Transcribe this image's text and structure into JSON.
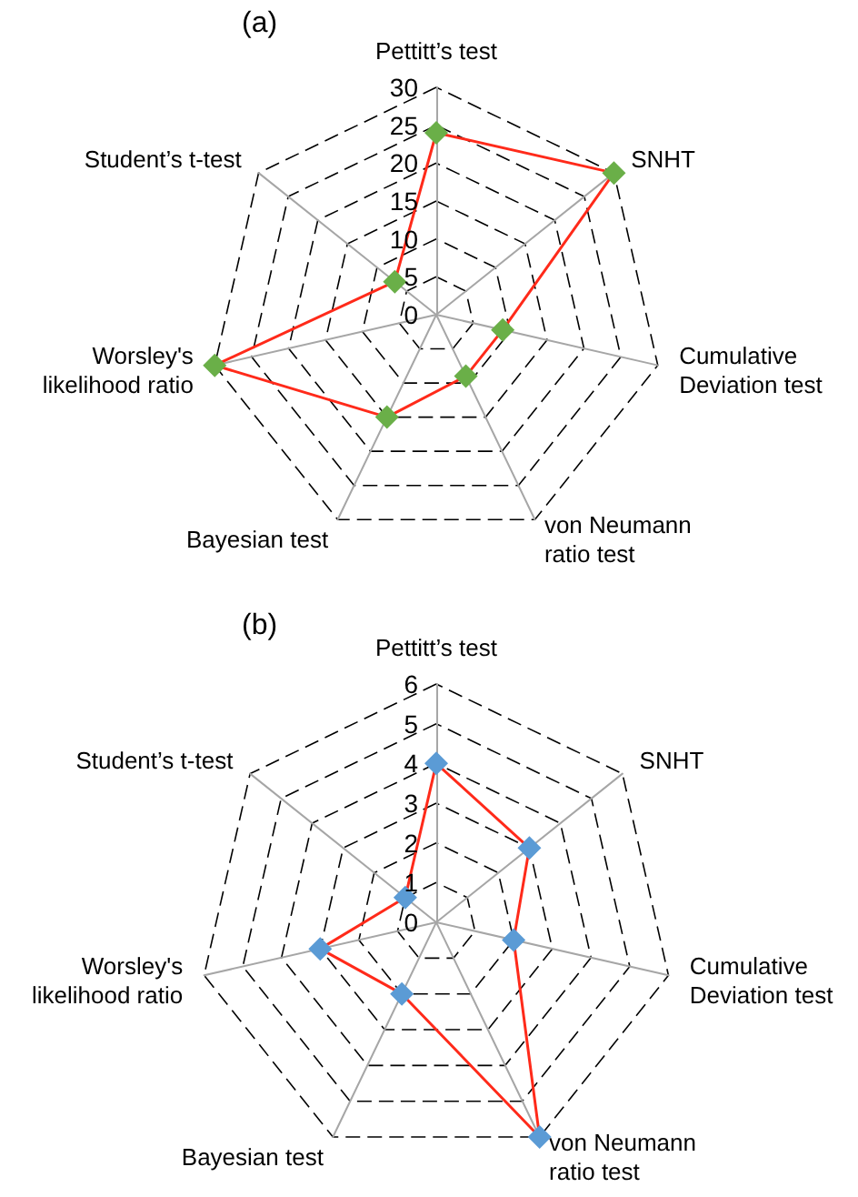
{
  "chart_data": [
    {
      "type": "radar",
      "title": "(a)",
      "categories": [
        "Pettitt’s test",
        "SNHT",
        "Cumulative Deviation test",
        "von Neumann ratio test",
        "Bayesian test",
        "Worsley's likelihood ratio",
        "Student’s t-test"
      ],
      "ylim": [
        0,
        30
      ],
      "yticks": [
        0,
        5,
        10,
        15,
        20,
        25,
        30
      ],
      "marker": "diamond",
      "line_style": "solid",
      "grid": true,
      "series": [
        {
          "color": "#ff2a1a",
          "colors": [
            "#6aaf48",
            "#6aaf48",
            "#6aaf48",
            "#6aaf48",
            "#6aaf48",
            "#6aaf48",
            "#6aaf48"
          ],
          "values": [
            24,
            30,
            9,
            9,
            15,
            30,
            7
          ]
        }
      ]
    },
    {
      "type": "radar",
      "title": "(b)",
      "categories": [
        "Pettitt’s test",
        "SNHT",
        "Cumulative Deviation test",
        "von Neumann ratio test",
        "Bayesian test",
        "Worsley's likelihood ratio",
        "Student’s t-test"
      ],
      "ylim": [
        0,
        6
      ],
      "yticks": [
        0,
        1,
        2,
        3,
        4,
        5,
        6
      ],
      "marker": "diamond",
      "line_style": "solid",
      "grid": true,
      "series": [
        {
          "color": "#ff2a1a",
          "colors": [
            "#5b9bd5",
            "#5b9bd5",
            "#5b9bd5",
            "#5b9bd5",
            "#5b9bd5",
            "#5b9bd5",
            "#5b9bd5"
          ],
          "values": [
            4,
            3,
            2,
            6,
            2,
            3,
            1
          ]
        }
      ]
    }
  ]
}
